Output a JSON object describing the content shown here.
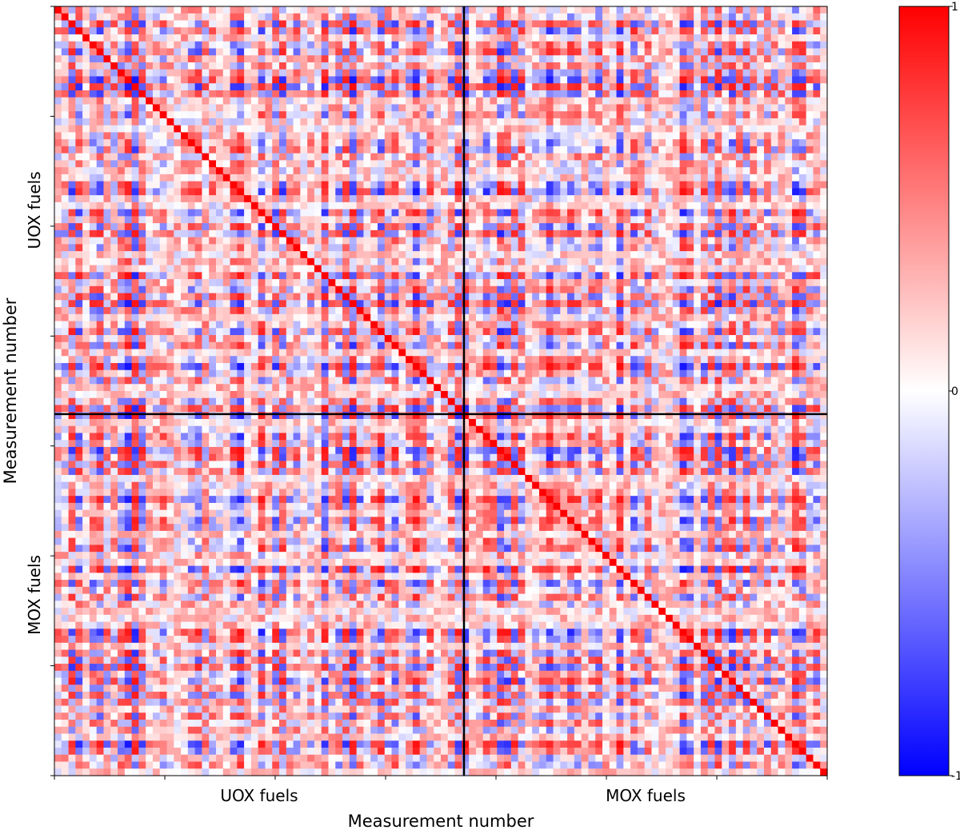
{
  "chart_data": {
    "type": "heatmap",
    "title": "",
    "xlabel": "Measurement number",
    "ylabel": "Measurement number",
    "x_groups": [
      "UOX fuels",
      "MOX fuels"
    ],
    "y_groups": [
      "UOX fuels",
      "MOX fuels"
    ],
    "colorbar": {
      "min": -1,
      "max": 1,
      "ticks": [
        "1",
        "0",
        "-1"
      ],
      "colormap": "bwr",
      "colors": {
        "negative": "#0000ff",
        "zero": "#ffffff",
        "positive": "#ff0000"
      }
    },
    "diagonal_value": 1,
    "values_note": "dense matrix of correlation coefficients in [-1, 1]"
  }
}
